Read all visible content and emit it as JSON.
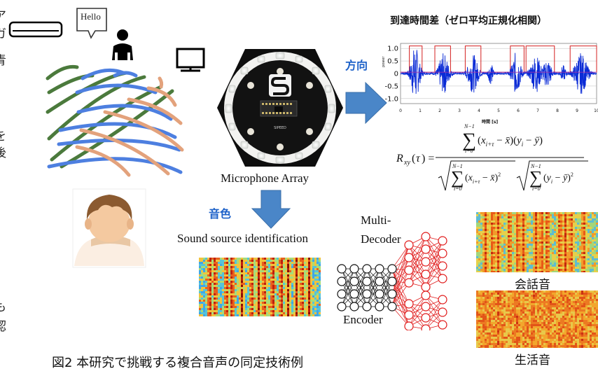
{
  "speech_bubble": "Hello",
  "device_label": "Microphone Array",
  "board_brand": "SIPEED",
  "direction_label": "方向",
  "timbre_label": "音色",
  "plot_title": "到達時間差（ゼロ平均正規化相関）",
  "plot_ylabel": "power",
  "plot_xlabel": "時間 [s]",
  "plot_yticks": [
    "1.0",
    "0.5",
    "0",
    "-0.5",
    "-1.0"
  ],
  "plot_xticks": [
    "0",
    "1",
    "2",
    "3",
    "4",
    "5",
    "6",
    "7",
    "8",
    "9",
    "10"
  ],
  "formula_label": "R_xy(τ) zero-mean normalized cross-correlation",
  "sound_source_label": "Sound source identification",
  "decoder_label_1": "Multi-",
  "decoder_label_2": "Decoder",
  "encoder_label": "Encoder",
  "spectrogram_label_1": "会話音",
  "spectrogram_label_2": "生活音",
  "caption": "図2 本研究で挑戦する複合音声の同定技術例",
  "left_margin_chars": [
    "ア",
    "ガ",
    "青",
    "を",
    "後",
    "も",
    "認"
  ],
  "colors": {
    "arrow": "#4a86c8",
    "direction_text": "#1e62c9",
    "wave_green": "#4b7a3c",
    "wave_blue": "#4d7fe0",
    "wave_tan": "#e3a27c",
    "signal": "#0a2bd6",
    "window_red": "#d42020",
    "network_red": "#e01818"
  }
}
